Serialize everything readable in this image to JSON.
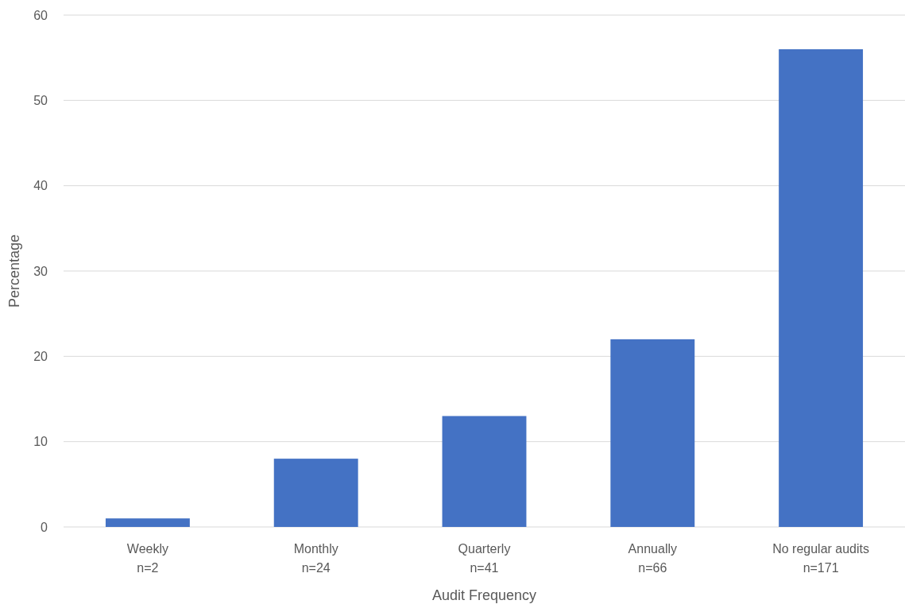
{
  "chart_data": {
    "type": "bar",
    "xlabel": "Audit Frequency",
    "ylabel": "Percentage",
    "categories": [
      "Weekly\nn=2",
      "Monthly\nn=24",
      "Quarterly\nn=41",
      "Annually\nn=66",
      "No regular audits\nn=171"
    ],
    "values": [
      1,
      8,
      13,
      22,
      56
    ],
    "color": "#4472c4",
    "ylim": [
      0,
      60
    ],
    "yticks": [
      0,
      10,
      20,
      30,
      40,
      50,
      60
    ],
    "grid": "y"
  }
}
